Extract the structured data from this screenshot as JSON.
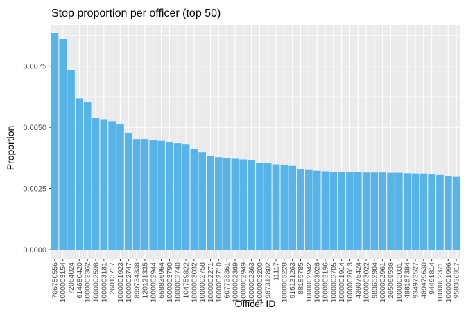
{
  "chart_data": {
    "type": "bar",
    "title": "Stop proportion per officer (top 50)",
    "xlabel": "Officer ID",
    "ylabel": "Proportion",
    "ylim": [
      0,
      0.0089
    ],
    "yticks": [
      0,
      0.0025,
      0.005,
      0.0075
    ],
    "ytick_labels": [
      "0.0000",
      "0.0025",
      "0.0050",
      "0.0075"
    ],
    "grid": true,
    "bar_color": "#56B4E9",
    "panel_color": "#EBEBEB",
    "grid_color": "#FFFFFF",
    "categories": [
      "706750556",
      "1000003154",
      "72064024",
      "614680420",
      "1000002362",
      "1000002598",
      "1000003181",
      "26013717",
      "1000001923",
      "1000002747",
      "899734338",
      "120121335",
      "1000002944",
      "668836964",
      "1000003790",
      "1000002740",
      "104759822",
      "1000003032",
      "1000002758",
      "1000002271",
      "1000002710",
      "607733361",
      "1000002369",
      "1000002949",
      "1000002363",
      "1000003200",
      "987312802",
      "11117",
      "1000003228",
      "915131263",
      "88185785",
      "1000002942",
      "1000003026",
      "1000003196",
      "1000002705",
      "1000001914",
      "1000002613",
      "439075424",
      "1000003022",
      "983652904",
      "1000002961",
      "265069536",
      "1000003031",
      "498167384",
      "934973527",
      "489479630",
      "94461814",
      "1000002371",
      "1000001996",
      "958336317"
    ],
    "values": [
      0.00885,
      0.00862,
      0.00735,
      0.00618,
      0.00602,
      0.00537,
      0.00533,
      0.00525,
      0.00512,
      0.00478,
      0.00452,
      0.00452,
      0.00448,
      0.00445,
      0.00438,
      0.00435,
      0.00432,
      0.00412,
      0.00398,
      0.00382,
      0.00378,
      0.00374,
      0.00372,
      0.00369,
      0.00365,
      0.00355,
      0.00355,
      0.00349,
      0.00348,
      0.00343,
      0.00329,
      0.00326,
      0.00323,
      0.00321,
      0.00319,
      0.00318,
      0.00318,
      0.00317,
      0.00316,
      0.00316,
      0.00316,
      0.00315,
      0.00315,
      0.00313,
      0.00312,
      0.00312,
      0.00308,
      0.00306,
      0.00302,
      0.00298
    ]
  }
}
